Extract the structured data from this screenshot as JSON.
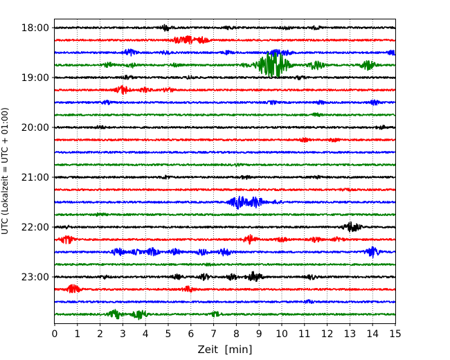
{
  "chart_data": {
    "type": "line",
    "title": "",
    "xlabel": "Zeit  [min]",
    "ylabel": "UTC (Lokalzeit = UTC + 01:00)",
    "xlim": [
      0,
      15
    ],
    "x_ticks": [
      "0",
      "1",
      "2",
      "3",
      "4",
      "5",
      "6",
      "7",
      "8",
      "9",
      "10",
      "11",
      "12",
      "13",
      "14",
      "15"
    ],
    "y_ticks": [
      "18:00",
      "19:00",
      "20:00",
      "21:00",
      "22:00",
      "23:00"
    ],
    "grid": "vertical dotted",
    "colors": [
      "#000000",
      "#ff0000",
      "#0000ff",
      "#008000"
    ],
    "traces": [
      {
        "start": "18:00",
        "color": "#000000",
        "events": [
          {
            "x": 4.9,
            "amp": 4
          },
          {
            "x": 7.7,
            "amp": 2
          },
          {
            "x": 10.2,
            "amp": 2
          },
          {
            "x": 11.5,
            "amp": 2
          }
        ]
      },
      {
        "start": "18:15",
        "color": "#ff0000",
        "events": [
          {
            "x": 5.4,
            "amp": 4
          },
          {
            "x": 5.9,
            "amp": 5
          },
          {
            "x": 6.5,
            "amp": 4
          }
        ]
      },
      {
        "start": "18:30",
        "color": "#0000ff",
        "events": [
          {
            "x": 3.3,
            "amp": 5
          },
          {
            "x": 4.9,
            "amp": 2
          },
          {
            "x": 7.6,
            "amp": 2
          },
          {
            "x": 9.7,
            "amp": 5
          },
          {
            "x": 10.2,
            "amp": 3
          },
          {
            "x": 14.9,
            "amp": 3
          }
        ]
      },
      {
        "start": "18:45",
        "color": "#008000",
        "events": [
          {
            "x": 2.4,
            "amp": 3
          },
          {
            "x": 3.4,
            "amp": 3
          },
          {
            "x": 5.3,
            "amp": 2
          },
          {
            "x": 8.4,
            "amp": 2
          },
          {
            "x": 9.45,
            "amp": 18
          },
          {
            "x": 10.0,
            "amp": 10
          },
          {
            "x": 11.5,
            "amp": 7
          },
          {
            "x": 13.8,
            "amp": 7
          }
        ]
      },
      {
        "start": "19:00",
        "color": "#000000",
        "events": [
          {
            "x": 3.2,
            "amp": 3
          },
          {
            "x": 6.0,
            "amp": 2
          },
          {
            "x": 10.8,
            "amp": 2
          }
        ]
      },
      {
        "start": "19:15",
        "color": "#ff0000",
        "events": [
          {
            "x": 3.0,
            "amp": 6
          },
          {
            "x": 4.0,
            "amp": 3
          },
          {
            "x": 5.0,
            "amp": 3
          }
        ]
      },
      {
        "start": "19:30",
        "color": "#0000ff",
        "events": [
          {
            "x": 2.3,
            "amp": 2
          },
          {
            "x": 9.6,
            "amp": 2
          },
          {
            "x": 11.7,
            "amp": 2
          },
          {
            "x": 14.1,
            "amp": 3
          }
        ]
      },
      {
        "start": "19:45",
        "color": "#008000",
        "events": [
          {
            "x": 11.5,
            "amp": 2
          }
        ]
      },
      {
        "start": "20:00",
        "color": "#000000",
        "events": [
          {
            "x": 2.0,
            "amp": 2
          },
          {
            "x": 14.4,
            "amp": 2
          }
        ]
      },
      {
        "start": "20:15",
        "color": "#ff0000",
        "events": [
          {
            "x": 11.0,
            "amp": 2
          },
          {
            "x": 12.3,
            "amp": 2
          }
        ]
      },
      {
        "start": "20:30",
        "color": "#0000ff",
        "events": []
      },
      {
        "start": "20:45",
        "color": "#008000",
        "events": [
          {
            "x": 8.0,
            "amp": 1
          }
        ]
      },
      {
        "start": "21:00",
        "color": "#000000",
        "events": [
          {
            "x": 4.9,
            "amp": 2
          },
          {
            "x": 8.4,
            "amp": 2
          },
          {
            "x": 11.5,
            "amp": 2
          }
        ]
      },
      {
        "start": "21:15",
        "color": "#ff0000",
        "events": [
          {
            "x": 12.8,
            "amp": 2
          }
        ]
      },
      {
        "start": "21:30",
        "color": "#0000ff",
        "events": [
          {
            "x": 8.1,
            "amp": 9
          },
          {
            "x": 8.85,
            "amp": 8
          },
          {
            "x": 9.8,
            "amp": 2
          }
        ]
      },
      {
        "start": "21:45",
        "color": "#008000",
        "events": [
          {
            "x": 2.0,
            "amp": 2
          }
        ]
      },
      {
        "start": "22:00",
        "color": "#000000",
        "events": [
          {
            "x": 0.5,
            "amp": 2
          },
          {
            "x": 13.1,
            "amp": 8
          }
        ]
      },
      {
        "start": "22:15",
        "color": "#ff0000",
        "events": [
          {
            "x": 0.55,
            "amp": 6
          },
          {
            "x": 8.6,
            "amp": 6
          },
          {
            "x": 10.0,
            "amp": 3
          },
          {
            "x": 11.5,
            "amp": 3
          },
          {
            "x": 12.5,
            "amp": 3
          }
        ]
      },
      {
        "start": "22:30",
        "color": "#0000ff",
        "events": [
          {
            "x": 2.8,
            "amp": 5
          },
          {
            "x": 3.6,
            "amp": 3
          },
          {
            "x": 4.3,
            "amp": 5
          },
          {
            "x": 5.3,
            "amp": 4
          },
          {
            "x": 6.5,
            "amp": 4
          },
          {
            "x": 7.5,
            "amp": 5
          },
          {
            "x": 14.0,
            "amp": 7
          }
        ]
      },
      {
        "start": "22:45",
        "color": "#008000",
        "events": [
          {
            "x": 6.8,
            "amp": 1
          }
        ]
      },
      {
        "start": "23:00",
        "color": "#000000",
        "events": [
          {
            "x": 2.2,
            "amp": 2
          },
          {
            "x": 5.4,
            "amp": 3
          },
          {
            "x": 6.6,
            "amp": 4
          },
          {
            "x": 7.8,
            "amp": 4
          },
          {
            "x": 8.8,
            "amp": 7
          },
          {
            "x": 11.3,
            "amp": 3
          }
        ]
      },
      {
        "start": "23:15",
        "color": "#ff0000",
        "events": [
          {
            "x": 0.8,
            "amp": 6
          },
          {
            "x": 5.9,
            "amp": 4
          }
        ]
      },
      {
        "start": "23:30",
        "color": "#0000ff",
        "events": [
          {
            "x": 11.2,
            "amp": 2
          }
        ]
      },
      {
        "start": "23:45",
        "color": "#008000",
        "events": [
          {
            "x": 2.7,
            "amp": 6
          },
          {
            "x": 3.75,
            "amp": 7
          },
          {
            "x": 7.1,
            "amp": 3
          }
        ]
      }
    ]
  }
}
